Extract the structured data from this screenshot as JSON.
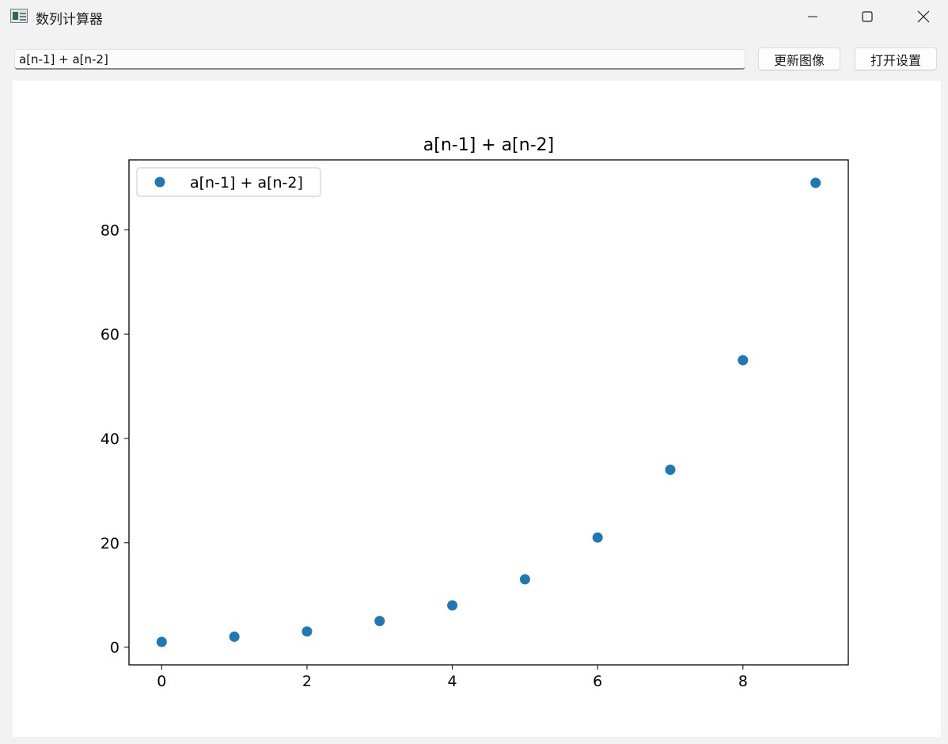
{
  "window": {
    "title": "数列计算器",
    "icon": "app-window-icon",
    "controls": [
      "minimize-icon",
      "maximize-icon",
      "close-icon"
    ]
  },
  "toolbar": {
    "expression_value": "a[n-1] + a[n-2]",
    "update_button_label": "更新图像",
    "settings_button_label": "打开设置"
  },
  "chart_data": {
    "type": "scatter",
    "title": "a[n-1] + a[n-2]",
    "xlabel": "",
    "ylabel": "",
    "series": [
      {
        "name": "a[n-1] + a[n-2]",
        "color": "#1f77b4",
        "x": [
          0,
          1,
          2,
          3,
          4,
          5,
          6,
          7,
          8,
          9
        ],
        "y": [
          1,
          2,
          3,
          5,
          8,
          13,
          21,
          34,
          55,
          89
        ]
      }
    ],
    "xlim": [
      -0.45,
      9.45
    ],
    "ylim": [
      -3.4,
      93.4
    ],
    "xticks": [
      0,
      2,
      4,
      6,
      8
    ],
    "yticks": [
      0,
      20,
      40,
      60,
      80
    ],
    "grid": false,
    "legend_position": "upper left"
  }
}
